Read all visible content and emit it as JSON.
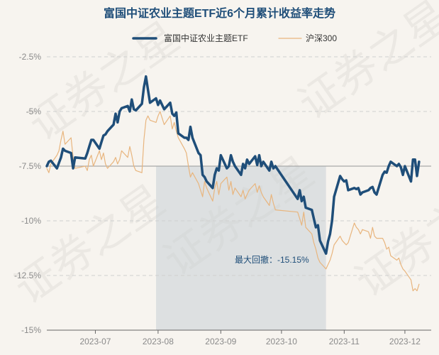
{
  "chart_data": {
    "type": "line",
    "title": "富国中证农业主题ETF近6个月累计收益率走势",
    "watermark": "证券之星",
    "ylim": [
      -15,
      -2.5
    ],
    "yticks": [
      -2.5,
      -5,
      -7.5,
      -10,
      -12.5,
      -15
    ],
    "ytick_labels": [
      "-2.5%",
      "-5%",
      "-7.5%",
      "-10%",
      "-12.5%",
      "-15%"
    ],
    "xlim": [
      "2023-06-07",
      "2023-12-14"
    ],
    "xticks": [
      "2023-07-01",
      "2023-08-01",
      "2023-09-01",
      "2023-10-01",
      "2023-11-01",
      "2023-12-01"
    ],
    "xtick_labels": [
      "2023-07",
      "2023-08",
      "2023-09",
      "2023-10",
      "2023-11",
      "2023-12"
    ],
    "baseline": -7.5,
    "legend_position": "top-center",
    "drawdown": {
      "label": "最大回撤：-15.15%",
      "start": "2023-07-31",
      "end": "2023-10-23"
    },
    "series": [
      {
        "name": "富国中证农业主题ETF",
        "color": "#1f4e79",
        "points": [
          [
            "2023-06-07",
            -7.5
          ],
          [
            "2023-06-08",
            -7.3
          ],
          [
            "2023-06-09",
            -7.25
          ],
          [
            "2023-06-12",
            -7.6
          ],
          [
            "2023-06-13",
            -7.35
          ],
          [
            "2023-06-14",
            -7.1
          ],
          [
            "2023-06-15",
            -6.7
          ],
          [
            "2023-06-16",
            -6.8
          ],
          [
            "2023-06-19",
            -6.9
          ],
          [
            "2023-06-20",
            -7.6
          ],
          [
            "2023-06-21",
            -7.1
          ],
          [
            "2023-06-26",
            -7.15
          ],
          [
            "2023-06-27",
            -6.9
          ],
          [
            "2023-06-28",
            -6.6
          ],
          [
            "2023-06-29",
            -6.3
          ],
          [
            "2023-06-30",
            -6.3
          ],
          [
            "2023-07-03",
            -6.7
          ],
          [
            "2023-07-04",
            -6.4
          ],
          [
            "2023-07-05",
            -6.1
          ],
          [
            "2023-07-06",
            -6.05
          ],
          [
            "2023-07-07",
            -5.9
          ],
          [
            "2023-07-10",
            -5.6
          ],
          [
            "2023-07-11",
            -5.1
          ],
          [
            "2023-07-12",
            -5.5
          ],
          [
            "2023-07-13",
            -5.0
          ],
          [
            "2023-07-14",
            -4.85
          ],
          [
            "2023-07-17",
            -4.75
          ],
          [
            "2023-07-18",
            -5.0
          ],
          [
            "2023-07-19",
            -4.45
          ],
          [
            "2023-07-20",
            -4.9
          ],
          [
            "2023-07-21",
            -4.95
          ],
          [
            "2023-07-24",
            -4.65
          ],
          [
            "2023-07-25",
            -3.9
          ],
          [
            "2023-07-26",
            -3.4
          ],
          [
            "2023-07-27",
            -4.0
          ],
          [
            "2023-07-28",
            -4.6
          ],
          [
            "2023-07-31",
            -4.4
          ],
          [
            "2023-08-01",
            -4.7
          ],
          [
            "2023-08-02",
            -4.5
          ],
          [
            "2023-08-03",
            -4.7
          ],
          [
            "2023-08-04",
            -4.9
          ],
          [
            "2023-08-07",
            -4.6
          ],
          [
            "2023-08-08",
            -5.1
          ],
          [
            "2023-08-09",
            -5.2
          ],
          [
            "2023-08-10",
            -5.05
          ],
          [
            "2023-08-11",
            -6.0
          ],
          [
            "2023-08-14",
            -6.2
          ],
          [
            "2023-08-15",
            -6.2
          ],
          [
            "2023-08-16",
            -6.3
          ],
          [
            "2023-08-17",
            -5.7
          ],
          [
            "2023-08-18",
            -6.2
          ],
          [
            "2023-08-21",
            -6.9
          ],
          [
            "2023-08-22",
            -7.0
          ],
          [
            "2023-08-23",
            -7.9
          ],
          [
            "2023-08-24",
            -8.0
          ],
          [
            "2023-08-25",
            -8.2
          ],
          [
            "2023-08-28",
            -8.5
          ],
          [
            "2023-08-29",
            -7.9
          ],
          [
            "2023-08-30",
            -7.6
          ],
          [
            "2023-08-31",
            -7.7
          ],
          [
            "2023-09-01",
            -7.0
          ],
          [
            "2023-09-04",
            -7.6
          ],
          [
            "2023-09-05",
            -7.5
          ],
          [
            "2023-09-06",
            -7.0
          ],
          [
            "2023-09-07",
            -7.3
          ],
          [
            "2023-09-08",
            -7.5
          ],
          [
            "2023-09-11",
            -7.9
          ],
          [
            "2023-09-12",
            -7.4
          ],
          [
            "2023-09-13",
            -7.6
          ],
          [
            "2023-09-14",
            -7.2
          ],
          [
            "2023-09-15",
            -7.4
          ],
          [
            "2023-09-18",
            -7.05
          ],
          [
            "2023-09-19",
            -7.45
          ],
          [
            "2023-09-20",
            -7.0
          ],
          [
            "2023-09-21",
            -7.5
          ],
          [
            "2023-09-22",
            -7.3
          ],
          [
            "2023-09-25",
            -7.7
          ],
          [
            "2023-09-26",
            -7.3
          ],
          [
            "2023-09-27",
            -7.6
          ],
          [
            "2023-09-28",
            -7.5
          ],
          [
            "2023-10-09",
            -9.0
          ],
          [
            "2023-10-10",
            -8.6
          ],
          [
            "2023-10-11",
            -9.1
          ],
          [
            "2023-10-12",
            -8.9
          ],
          [
            "2023-10-13",
            -9.4
          ],
          [
            "2023-10-16",
            -9.5
          ],
          [
            "2023-10-17",
            -9.9
          ],
          [
            "2023-10-18",
            -10.3
          ],
          [
            "2023-10-19",
            -10.2
          ],
          [
            "2023-10-20",
            -10.9
          ],
          [
            "2023-10-23",
            -11.5
          ],
          [
            "2023-10-24",
            -10.95
          ],
          [
            "2023-10-25",
            -10.6
          ],
          [
            "2023-10-26",
            -10.0
          ],
          [
            "2023-10-27",
            -8.9
          ],
          [
            "2023-10-30",
            -7.95
          ],
          [
            "2023-10-31",
            -8.1
          ],
          [
            "2023-11-01",
            -8.2
          ],
          [
            "2023-11-02",
            -8.15
          ],
          [
            "2023-11-03",
            -8.6
          ],
          [
            "2023-11-06",
            -8.5
          ],
          [
            "2023-11-07",
            -8.55
          ],
          [
            "2023-11-08",
            -8.5
          ],
          [
            "2023-11-09",
            -8.8
          ],
          [
            "2023-11-10",
            -8.7
          ],
          [
            "2023-11-13",
            -8.6
          ],
          [
            "2023-11-14",
            -8.5
          ],
          [
            "2023-11-15",
            -8.45
          ],
          [
            "2023-11-16",
            -8.7
          ],
          [
            "2023-11-17",
            -8.8
          ],
          [
            "2023-11-20",
            -7.9
          ],
          [
            "2023-11-21",
            -7.75
          ],
          [
            "2023-11-22",
            -7.8
          ],
          [
            "2023-11-23",
            -7.5
          ],
          [
            "2023-11-24",
            -7.3
          ],
          [
            "2023-11-27",
            -7.5
          ],
          [
            "2023-11-28",
            -7.4
          ],
          [
            "2023-11-29",
            -7.55
          ],
          [
            "2023-11-30",
            -7.9
          ],
          [
            "2023-12-01",
            -7.5
          ],
          [
            "2023-12-04",
            -8.2
          ],
          [
            "2023-12-05",
            -7.2
          ],
          [
            "2023-12-06",
            -7.2
          ],
          [
            "2023-12-07",
            -7.95
          ],
          [
            "2023-12-08",
            -7.3
          ]
        ]
      },
      {
        "name": "沪深300",
        "color": "#e8b57e",
        "points": [
          [
            "2023-06-07",
            -7.6
          ],
          [
            "2023-06-08",
            -7.8
          ],
          [
            "2023-06-09",
            -7.4
          ],
          [
            "2023-06-12",
            -7.0
          ],
          [
            "2023-06-13",
            -6.8
          ],
          [
            "2023-06-14",
            -6.3
          ],
          [
            "2023-06-15",
            -5.9
          ],
          [
            "2023-06-16",
            -6.5
          ],
          [
            "2023-06-19",
            -6.2
          ],
          [
            "2023-06-20",
            -7.1
          ],
          [
            "2023-06-21",
            -7.6
          ],
          [
            "2023-06-26",
            -7.5
          ],
          [
            "2023-06-27",
            -7.7
          ],
          [
            "2023-06-28",
            -7.2
          ],
          [
            "2023-06-29",
            -7.0
          ],
          [
            "2023-06-30",
            -7.5
          ],
          [
            "2023-07-03",
            -6.8
          ],
          [
            "2023-07-04",
            -7.2
          ],
          [
            "2023-07-05",
            -6.9
          ],
          [
            "2023-07-06",
            -7.4
          ],
          [
            "2023-07-07",
            -7.6
          ],
          [
            "2023-07-10",
            -7.3
          ],
          [
            "2023-07-11",
            -7.1
          ],
          [
            "2023-07-12",
            -7.4
          ],
          [
            "2023-07-13",
            -7.2
          ],
          [
            "2023-07-14",
            -6.8
          ],
          [
            "2023-07-17",
            -7.1
          ],
          [
            "2023-07-18",
            -6.6
          ],
          [
            "2023-07-19",
            -7.0
          ],
          [
            "2023-07-20",
            -7.5
          ],
          [
            "2023-07-21",
            -7.7
          ],
          [
            "2023-07-24",
            -7.8
          ],
          [
            "2023-07-25",
            -6.3
          ],
          [
            "2023-07-26",
            -5.4
          ],
          [
            "2023-07-27",
            -5.2
          ],
          [
            "2023-07-28",
            -5.4
          ],
          [
            "2023-07-31",
            -5.5
          ],
          [
            "2023-08-01",
            -5.2
          ],
          [
            "2023-08-02",
            -5.0
          ],
          [
            "2023-08-03",
            -5.3
          ],
          [
            "2023-08-04",
            -5.6
          ],
          [
            "2023-08-07",
            -5.2
          ],
          [
            "2023-08-08",
            -5.8
          ],
          [
            "2023-08-09",
            -5.5
          ],
          [
            "2023-08-10",
            -5.9
          ],
          [
            "2023-08-11",
            -6.2
          ],
          [
            "2023-08-14",
            -6.7
          ],
          [
            "2023-08-15",
            -6.9
          ],
          [
            "2023-08-16",
            -7.5
          ],
          [
            "2023-08-17",
            -8.0
          ],
          [
            "2023-08-18",
            -7.8
          ],
          [
            "2023-08-21",
            -8.3
          ],
          [
            "2023-08-22",
            -8.6
          ],
          [
            "2023-08-23",
            -8.9
          ],
          [
            "2023-08-24",
            -8.2
          ],
          [
            "2023-08-25",
            -8.5
          ],
          [
            "2023-08-28",
            -9.1
          ],
          [
            "2023-08-29",
            -8.5
          ],
          [
            "2023-08-30",
            -8.2
          ],
          [
            "2023-08-31",
            -8.8
          ],
          [
            "2023-09-01",
            -8.3
          ],
          [
            "2023-09-04",
            -8.0
          ],
          [
            "2023-09-05",
            -8.6
          ],
          [
            "2023-09-06",
            -8.2
          ],
          [
            "2023-09-07",
            -8.8
          ],
          [
            "2023-09-08",
            -8.5
          ],
          [
            "2023-09-11",
            -8.9
          ],
          [
            "2023-09-12",
            -8.6
          ],
          [
            "2023-09-13",
            -9.0
          ],
          [
            "2023-09-14",
            -8.8
          ],
          [
            "2023-09-15",
            -8.6
          ],
          [
            "2023-09-18",
            -8.3
          ],
          [
            "2023-09-19",
            -8.7
          ],
          [
            "2023-09-20",
            -8.4
          ],
          [
            "2023-09-21",
            -8.7
          ],
          [
            "2023-09-22",
            -8.9
          ],
          [
            "2023-09-25",
            -9.3
          ],
          [
            "2023-09-26",
            -8.8
          ],
          [
            "2023-09-27",
            -9.2
          ],
          [
            "2023-09-28",
            -9.5
          ],
          [
            "2023-10-09",
            -9.6
          ],
          [
            "2023-10-10",
            -9.9
          ],
          [
            "2023-10-11",
            -10.2
          ],
          [
            "2023-10-12",
            -9.6
          ],
          [
            "2023-10-13",
            -10.3
          ],
          [
            "2023-10-16",
            -10.6
          ],
          [
            "2023-10-17",
            -11.0
          ],
          [
            "2023-10-18",
            -11.3
          ],
          [
            "2023-10-19",
            -11.7
          ],
          [
            "2023-10-20",
            -11.9
          ],
          [
            "2023-10-23",
            -12.2
          ],
          [
            "2023-10-24",
            -12.0
          ],
          [
            "2023-10-25",
            -11.8
          ],
          [
            "2023-10-26",
            -11.5
          ],
          [
            "2023-10-27",
            -11.1
          ],
          [
            "2023-10-30",
            -10.7
          ],
          [
            "2023-10-31",
            -10.9
          ],
          [
            "2023-11-01",
            -11.0
          ],
          [
            "2023-11-02",
            -11.1
          ],
          [
            "2023-11-03",
            -11.0
          ],
          [
            "2023-11-06",
            -10.1
          ],
          [
            "2023-11-07",
            -10.3
          ],
          [
            "2023-11-08",
            -10.4
          ],
          [
            "2023-11-09",
            -10.6
          ],
          [
            "2023-11-10",
            -10.4
          ],
          [
            "2023-11-13",
            -10.5
          ],
          [
            "2023-11-14",
            -10.8
          ],
          [
            "2023-11-15",
            -10.3
          ],
          [
            "2023-11-16",
            -10.7
          ],
          [
            "2023-11-17",
            -10.8
          ],
          [
            "2023-11-20",
            -10.8
          ],
          [
            "2023-11-21",
            -11.0
          ],
          [
            "2023-11-22",
            -11.3
          ],
          [
            "2023-11-23",
            -11.2
          ],
          [
            "2023-11-24",
            -11.6
          ],
          [
            "2023-11-27",
            -11.8
          ],
          [
            "2023-11-28",
            -11.7
          ],
          [
            "2023-11-29",
            -12.0
          ],
          [
            "2023-11-30",
            -12.2
          ],
          [
            "2023-12-01",
            -12.3
          ],
          [
            "2023-12-04",
            -12.7
          ],
          [
            "2023-12-05",
            -13.2
          ],
          [
            "2023-12-06",
            -13.1
          ],
          [
            "2023-12-07",
            -13.2
          ],
          [
            "2023-12-08",
            -12.9
          ]
        ]
      }
    ]
  }
}
